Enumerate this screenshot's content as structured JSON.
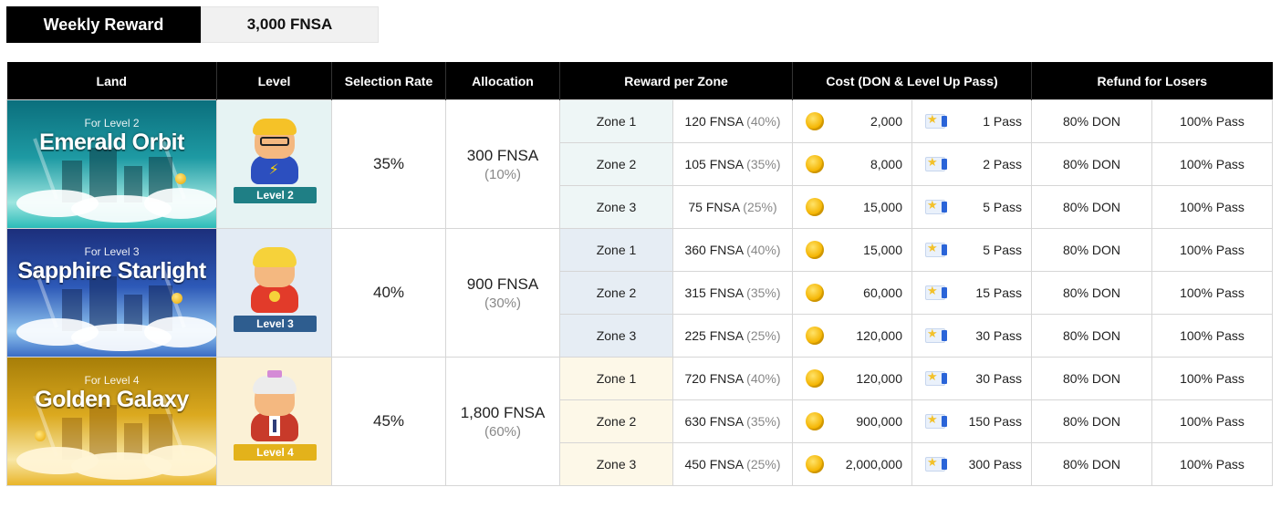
{
  "weekly_reward": {
    "label": "Weekly Reward",
    "value": "3,000 FNSA"
  },
  "headers": {
    "land": "Land",
    "level": "Level",
    "selection_rate": "Selection Rate",
    "allocation": "Allocation",
    "reward_per_zone": "Reward per Zone",
    "cost": "Cost (DON & Level Up Pass)",
    "refund": "Refund for Losers"
  },
  "lands": [
    {
      "for_level": "For Level 2",
      "name": "Emerald Orbit",
      "level_badge": "Level 2",
      "selection_rate": "35%",
      "allocation": "300 FNSA",
      "allocation_pct": "(10%)",
      "zones": [
        {
          "zone": "Zone 1",
          "reward": "120 FNSA",
          "reward_pct": "(40%)",
          "don": "2,000",
          "pass": "1 Pass",
          "refund_don": "80% DON",
          "refund_pass": "100% Pass"
        },
        {
          "zone": "Zone 2",
          "reward": "105 FNSA",
          "reward_pct": "(35%)",
          "don": "8,000",
          "pass": "2 Pass",
          "refund_don": "80% DON",
          "refund_pass": "100% Pass"
        },
        {
          "zone": "Zone 3",
          "reward": "75 FNSA",
          "reward_pct": "(25%)",
          "don": "15,000",
          "pass": "5 Pass",
          "refund_don": "80% DON",
          "refund_pass": "100% Pass"
        }
      ]
    },
    {
      "for_level": "For Level 3",
      "name": "Sapphire Starlight",
      "level_badge": "Level 3",
      "selection_rate": "40%",
      "allocation": "900 FNSA",
      "allocation_pct": "(30%)",
      "zones": [
        {
          "zone": "Zone 1",
          "reward": "360 FNSA",
          "reward_pct": "(40%)",
          "don": "15,000",
          "pass": "5 Pass",
          "refund_don": "80% DON",
          "refund_pass": "100% Pass"
        },
        {
          "zone": "Zone 2",
          "reward": "315 FNSA",
          "reward_pct": "(35%)",
          "don": "60,000",
          "pass": "15 Pass",
          "refund_don": "80% DON",
          "refund_pass": "100% Pass"
        },
        {
          "zone": "Zone 3",
          "reward": "225 FNSA",
          "reward_pct": "(25%)",
          "don": "120,000",
          "pass": "30 Pass",
          "refund_don": "80% DON",
          "refund_pass": "100% Pass"
        }
      ]
    },
    {
      "for_level": "For Level 4",
      "name": "Golden Galaxy",
      "level_badge": "Level 4",
      "selection_rate": "45%",
      "allocation": "1,800 FNSA",
      "allocation_pct": "(60%)",
      "zones": [
        {
          "zone": "Zone 1",
          "reward": "720 FNSA",
          "reward_pct": "(40%)",
          "don": "120,000",
          "pass": "30 Pass",
          "refund_don": "80% DON",
          "refund_pass": "100% Pass"
        },
        {
          "zone": "Zone 2",
          "reward": "630 FNSA",
          "reward_pct": "(35%)",
          "don": "900,000",
          "pass": "150 Pass",
          "refund_don": "80% DON",
          "refund_pass": "100% Pass"
        },
        {
          "zone": "Zone 3",
          "reward": "450 FNSA",
          "reward_pct": "(25%)",
          "don": "2,000,000",
          "pass": "300 Pass",
          "refund_don": "80% DON",
          "refund_pass": "100% Pass"
        }
      ]
    }
  ],
  "icons": {
    "don": "gold-coin-icon",
    "pass": "level-up-pass-icon"
  },
  "colors": {
    "header_bg": "#000000",
    "emerald": "#1f7f85",
    "sapphire": "#2e5d8f",
    "golden": "#e3b21b"
  }
}
